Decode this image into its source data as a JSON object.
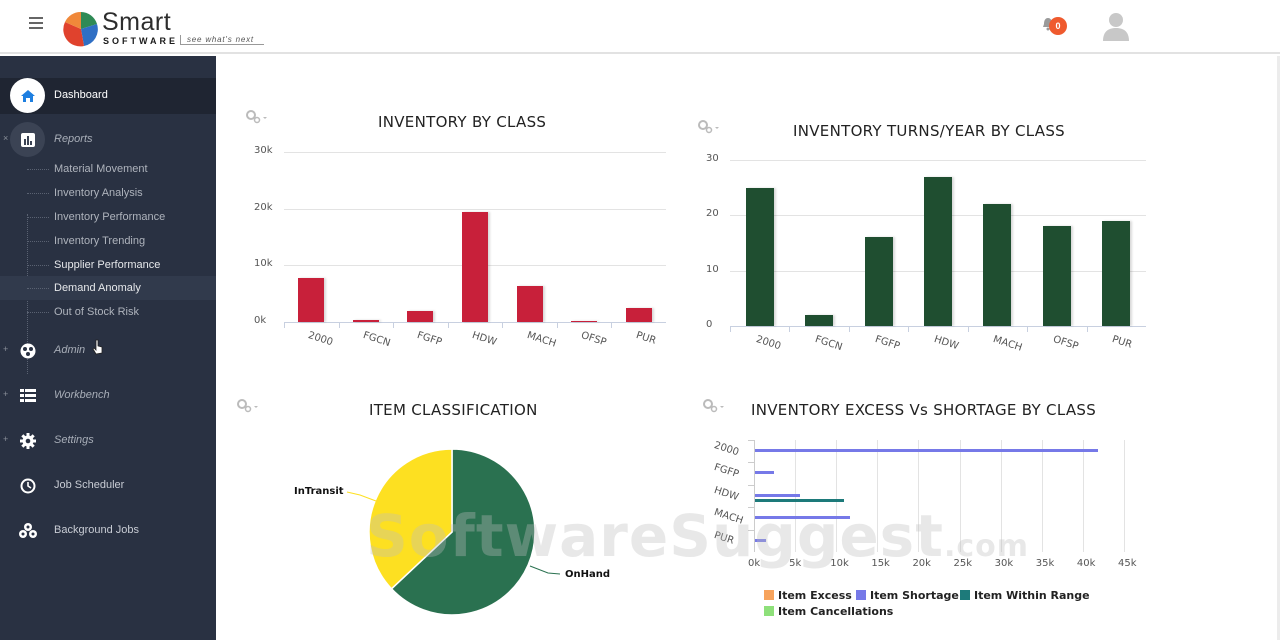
{
  "header": {
    "logo_text": "Smart",
    "logo_sub": "SOFTWARE",
    "logo_tagline": "see what's next",
    "notification_count": "0",
    "colors": {
      "badge": "#ef5a2e"
    }
  },
  "sidebar": {
    "items": [
      {
        "label": "Dashboard",
        "icon": "home-icon",
        "active": true
      },
      {
        "label": "Reports",
        "icon": "bar-chart-icon",
        "expanded": true
      },
      {
        "label": "Admin",
        "icon": "admin-icon"
      },
      {
        "label": "Workbench",
        "icon": "list-icon"
      },
      {
        "label": "Settings",
        "icon": "gear-icon"
      },
      {
        "label": "Job Scheduler",
        "icon": "clock-icon"
      },
      {
        "label": "Background Jobs",
        "icon": "cubes-icon"
      }
    ],
    "report_subitems": [
      {
        "label": "Material Movement"
      },
      {
        "label": "Inventory Analysis"
      },
      {
        "label": "Inventory Performance"
      },
      {
        "label": "Inventory Trending"
      },
      {
        "label": "Supplier Performance"
      },
      {
        "label": "Demand Anomaly"
      },
      {
        "label": "Out of Stock Risk"
      }
    ]
  },
  "watermark": {
    "text": "SoftwareSuggest",
    "suffix": ".com"
  },
  "chart_data": [
    {
      "type": "bar",
      "title": "INVENTORY BY CLASS",
      "categories": [
        "2000",
        "FGCN",
        "FGFP",
        "HDW",
        "MACH",
        "OFSP",
        "PUR"
      ],
      "values": [
        7700,
        300,
        1900,
        19500,
        6400,
        100,
        2400
      ],
      "yticks": [
        "0k",
        "10k",
        "20k",
        "30k"
      ],
      "ylim": [
        0,
        30000
      ],
      "color": "#c8203a",
      "xlabel": "",
      "ylabel": "",
      "grid": true
    },
    {
      "type": "bar",
      "title": "INVENTORY TURNS/YEAR BY CLASS",
      "categories": [
        "2000",
        "FGCN",
        "FGFP",
        "HDW",
        "MACH",
        "OFSP",
        "PUR"
      ],
      "values": [
        25,
        2,
        16,
        27,
        22,
        18,
        19
      ],
      "yticks": [
        "0",
        "10",
        "20",
        "30"
      ],
      "ylim": [
        0,
        30
      ],
      "color": "#1f4e30",
      "xlabel": "",
      "ylabel": "",
      "grid": true
    },
    {
      "type": "pie",
      "title": "ITEM CLASSIFICATION",
      "categories": [
        "OnHand",
        "InTransit"
      ],
      "values": [
        63,
        37
      ],
      "colors": [
        "#2a7150",
        "#fde021"
      ]
    },
    {
      "type": "bar",
      "orientation": "horizontal",
      "title": "INVENTORY EXCESS Vs SHORTAGE BY CLASS",
      "categories": [
        "2000",
        "FGFP",
        "HDW",
        "MACH",
        "PUR"
      ],
      "series": [
        {
          "name": "Item Excess",
          "color": "#f7a35c",
          "values": [
            0,
            0,
            0,
            0,
            0
          ]
        },
        {
          "name": "Item Shortage",
          "color": "#7679e8",
          "values": [
            41700,
            2300,
            5500,
            11500,
            1300
          ]
        },
        {
          "name": "Item Within Range",
          "color": "#1d7a7a",
          "values": [
            0,
            0,
            10800,
            0,
            0
          ]
        },
        {
          "name": "Item Cancellations",
          "color": "#8ee07a",
          "values": [
            0,
            0,
            0,
            0,
            0
          ]
        }
      ],
      "xticks": [
        "0k",
        "5k",
        "10k",
        "15k",
        "20k",
        "25k",
        "30k",
        "35k",
        "40k",
        "45k"
      ],
      "xlim": [
        0,
        45000
      ],
      "legend_position": "bottom",
      "grid": true
    }
  ]
}
